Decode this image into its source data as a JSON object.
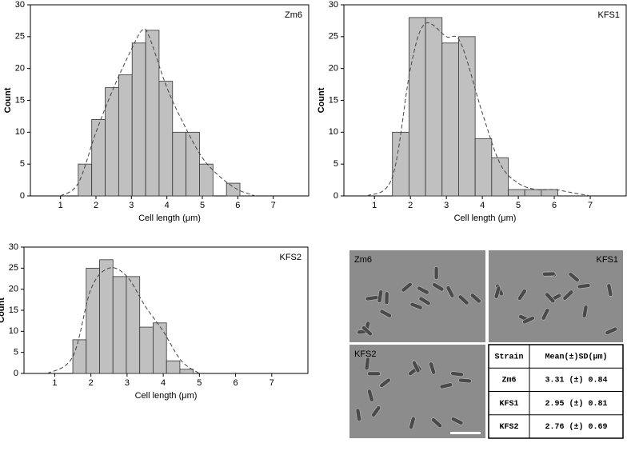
{
  "chart_data": [
    {
      "type": "histogram",
      "title": "Zm6",
      "xlabel": "Cell length (μm)",
      "ylabel": "Count",
      "color": "#c0c0c0",
      "bins": [
        1.5,
        1.88,
        2.26,
        2.64,
        3.02,
        3.4,
        3.78,
        4.16,
        4.54,
        4.92,
        5.3,
        5.68,
        6.06
      ],
      "counts": [
        5,
        12,
        17,
        19,
        24,
        26,
        18,
        10,
        10,
        5,
        0,
        2
      ],
      "fit": {
        "x": [
          1,
          1.5,
          2,
          2.5,
          3,
          3.3,
          3.5,
          4,
          4.5,
          5,
          5.5,
          6,
          6.5
        ],
        "values": [
          0,
          2,
          10,
          17,
          23,
          26,
          25,
          17,
          11,
          6,
          3,
          1,
          0
        ]
      },
      "xlim": [
        0.15,
        8
      ],
      "xticks": [
        1,
        2,
        3,
        4,
        5,
        6,
        7
      ],
      "ylim": [
        0,
        30
      ],
      "yticks": [
        0,
        5,
        10,
        15,
        20,
        25,
        30
      ]
    },
    {
      "type": "histogram",
      "title": "KFS1",
      "xlabel": "Cell length (μm)",
      "ylabel": "Count",
      "color": "#c0c0c0",
      "bins": [
        1.5,
        1.96,
        2.42,
        2.88,
        3.34,
        3.8,
        4.26,
        4.72,
        5.18,
        5.64,
        6.1
      ],
      "counts": [
        10,
        28,
        28,
        24,
        25,
        9,
        6,
        1,
        1,
        1
      ],
      "fit": {
        "x": [
          0.8,
          1.5,
          2,
          2.4,
          3,
          3.4,
          4,
          4.5,
          5,
          5.5,
          6,
          6.5,
          7
        ],
        "values": [
          0,
          3,
          20,
          27,
          25,
          24,
          13,
          5,
          2,
          1,
          1,
          0.5,
          0
        ]
      },
      "xlim": [
        0.15,
        8
      ],
      "xticks": [
        1,
        2,
        3,
        4,
        5,
        6,
        7
      ],
      "ylim": [
        0,
        30
      ],
      "yticks": [
        0,
        5,
        10,
        15,
        20,
        25,
        30
      ]
    },
    {
      "type": "histogram",
      "title": "KFS2",
      "xlabel": "Cell length (μm)",
      "ylabel": "Count",
      "color": "#c0c0c0",
      "bins": [
        1.5,
        1.87,
        2.24,
        2.61,
        2.98,
        3.35,
        3.72,
        4.09,
        4.46,
        4.83
      ],
      "counts": [
        8,
        25,
        27,
        23,
        23,
        11,
        12,
        3,
        1
      ],
      "fit": {
        "x": [
          0.8,
          1.5,
          2,
          2.5,
          3,
          3.5,
          4,
          4.5,
          5
        ],
        "values": [
          0,
          4,
          20,
          25,
          23,
          16,
          10,
          3,
          0
        ]
      },
      "xlim": [
        0.15,
        8
      ],
      "xticks": [
        1,
        2,
        3,
        4,
        5,
        6,
        7
      ],
      "ylim": [
        0,
        30
      ],
      "yticks": [
        0,
        5,
        10,
        15,
        20,
        25,
        30
      ]
    }
  ],
  "micrographs": {
    "labels": [
      "Zm6",
      "KFS1",
      "KFS2"
    ]
  },
  "table": {
    "header": [
      "Strain",
      "Mean(±)SD(μm)"
    ],
    "rows": [
      [
        "Zm6",
        "3.31 (±) 0.84"
      ],
      [
        "KFS1",
        "2.95 (±) 0.81"
      ],
      [
        "KFS2",
        "2.76 (±) 0.69"
      ]
    ]
  }
}
